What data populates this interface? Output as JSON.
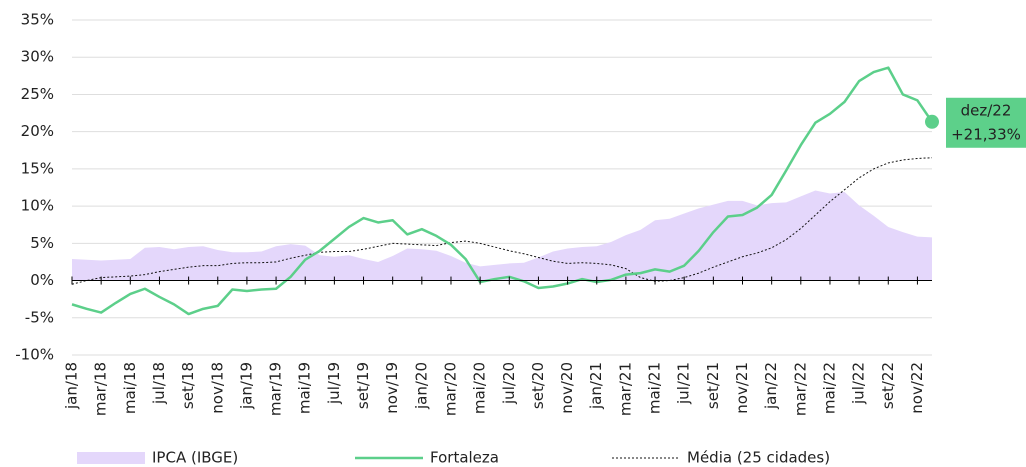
{
  "chart_data": {
    "type": "line",
    "categories": [
      "jan/18",
      null,
      "mar/18",
      null,
      "mai/18",
      null,
      "jul/18",
      null,
      "set/18",
      null,
      "nov/18",
      null,
      "jan/19",
      null,
      "mar/19",
      null,
      "mai/19",
      null,
      "jul/19",
      null,
      "set/19",
      null,
      "nov/19",
      null,
      "jan/20",
      null,
      "mar/20",
      null,
      "mai/20",
      null,
      "jul/20",
      null,
      "set/20",
      null,
      "nov/20",
      null,
      "jan/21",
      null,
      "mar/21",
      null,
      "mai/21",
      null,
      "jul/21",
      null,
      "set/21",
      null,
      "nov/21",
      null,
      "jan/22",
      null,
      "mar/22",
      null,
      "mai/22",
      null,
      "jul/22",
      null,
      "set/22",
      null,
      "nov/22",
      null
    ],
    "series": [
      {
        "name": "IPCA (IBGE)",
        "style": "area",
        "color": "#e4d7fb",
        "values": [
          2.9,
          2.8,
          2.7,
          2.8,
          2.9,
          4.4,
          4.5,
          4.2,
          4.5,
          4.6,
          4.1,
          3.8,
          3.8,
          3.9,
          4.6,
          4.9,
          4.7,
          3.4,
          3.2,
          3.4,
          2.9,
          2.5,
          3.3,
          4.3,
          4.2,
          4.0,
          3.3,
          2.4,
          1.9,
          2.1,
          2.3,
          2.4,
          3.1,
          3.9,
          4.3,
          4.5,
          4.6,
          5.2,
          6.1,
          6.8,
          8.1,
          8.3,
          9.0,
          9.7,
          10.2,
          10.7,
          10.7,
          10.1,
          10.4,
          10.5,
          11.3,
          12.1,
          11.7,
          11.9,
          10.1,
          8.7,
          7.2,
          6.5,
          5.9,
          5.8
        ]
      },
      {
        "name": "Fortaleza",
        "style": "solid",
        "color": "#5ccf8a",
        "values": [
          -3.2,
          -3.8,
          -4.3,
          -3.0,
          -1.8,
          -1.1,
          -2.2,
          -3.2,
          -4.5,
          -3.8,
          -3.4,
          -1.2,
          -1.4,
          -1.2,
          -1.1,
          0.5,
          2.8,
          4.0,
          5.6,
          7.2,
          8.4,
          7.8,
          8.1,
          6.2,
          6.9,
          6.0,
          4.8,
          2.9,
          -0.2,
          0.2,
          0.5,
          -0.1,
          -1.0,
          -0.8,
          -0.4,
          0.2,
          -0.2,
          0.1,
          0.8,
          1.0,
          1.5,
          1.2,
          2.0,
          4.0,
          6.5,
          8.6,
          8.8,
          9.8,
          11.5,
          14.8,
          18.2,
          21.2,
          22.4,
          24.0,
          26.8,
          28.0,
          28.6,
          25.0,
          24.2,
          21.33
        ]
      },
      {
        "name": "Média (25 cidades)",
        "style": "dotted",
        "color": "#111111",
        "values": [
          -0.5,
          0.0,
          0.4,
          0.5,
          0.6,
          0.8,
          1.2,
          1.5,
          1.8,
          2.0,
          2.0,
          2.3,
          2.4,
          2.4,
          2.5,
          3.0,
          3.4,
          3.8,
          3.9,
          3.9,
          4.2,
          4.6,
          5.0,
          4.9,
          4.8,
          4.7,
          5.1,
          5.3,
          5.0,
          4.5,
          4.0,
          3.6,
          3.1,
          2.6,
          2.3,
          2.4,
          2.3,
          2.1,
          1.6,
          0.4,
          -0.1,
          0.0,
          0.4,
          1.0,
          1.8,
          2.5,
          3.2,
          3.7,
          4.4,
          5.5,
          7.0,
          8.8,
          10.6,
          12.2,
          13.8,
          15.0,
          15.8,
          16.2,
          16.4,
          16.5
        ]
      }
    ],
    "annotation": {
      "series": 1,
      "index": 59,
      "lines": [
        "dez/22",
        "+21,33%"
      ],
      "color": "#5dd08a"
    },
    "ylim": [
      -10,
      35
    ],
    "yticks": [
      {
        "value": -10,
        "label": "-10%"
      },
      {
        "value": -5,
        "label": "-5%"
      },
      {
        "value": 0,
        "label": "0%"
      },
      {
        "value": 5,
        "label": "5%"
      },
      {
        "value": 10,
        "label": "10%"
      },
      {
        "value": 15,
        "label": "15%"
      },
      {
        "value": 20,
        "label": "20%"
      },
      {
        "value": 25,
        "label": "25%"
      },
      {
        "value": 30,
        "label": "30%"
      },
      {
        "value": 35,
        "label": "35%"
      }
    ],
    "grid": true,
    "legend": "bottom"
  }
}
